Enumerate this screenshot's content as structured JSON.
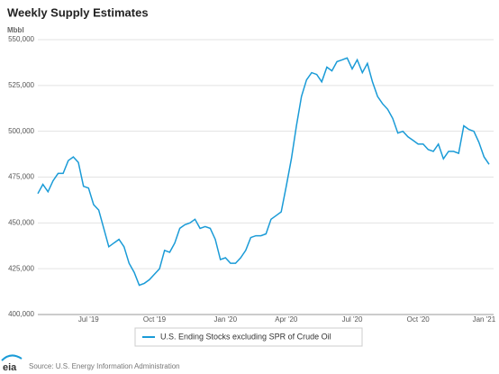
{
  "chart_data": {
    "type": "line",
    "title": "Weekly Supply Estimates",
    "y_unit": "Mbbl",
    "source": "Source: U.S. Energy Information Administration",
    "logo": "eia",
    "categories": [
      null,
      null,
      null,
      null,
      null,
      null,
      null,
      null,
      null,
      null,
      "Jul '19",
      null,
      null,
      null,
      null,
      null,
      null,
      null,
      null,
      null,
      null,
      null,
      null,
      "Oct '19",
      null,
      null,
      null,
      null,
      null,
      null,
      null,
      null,
      null,
      null,
      null,
      null,
      null,
      "Jan '20",
      null,
      null,
      null,
      null,
      null,
      null,
      null,
      null,
      null,
      null,
      null,
      "Apr '20",
      null,
      null,
      null,
      null,
      null,
      null,
      null,
      null,
      null,
      null,
      null,
      null,
      "Jul '20",
      null,
      null,
      null,
      null,
      null,
      null,
      null,
      null,
      null,
      null,
      null,
      null,
      "Oct '20",
      null,
      null,
      null,
      null,
      null,
      null,
      null,
      null,
      null,
      null,
      null,
      null,
      "Jan '21",
      null
    ],
    "series": [
      {
        "name": "U.S. Ending Stocks excluding SPR of Crude Oil",
        "color": "#1a9bd7",
        "values": [
          466000,
          471000,
          467000,
          473000,
          477000,
          477000,
          484000,
          486000,
          483000,
          470000,
          469000,
          460000,
          457000,
          447000,
          437000,
          439000,
          441000,
          437000,
          428000,
          423000,
          416000,
          417000,
          419000,
          422000,
          425000,
          435000,
          434000,
          439000,
          447000,
          449000,
          450000,
          452000,
          447000,
          448000,
          447000,
          441000,
          430000,
          431000,
          428000,
          428000,
          431000,
          435000,
          442000,
          443000,
          443000,
          444000,
          452000,
          454000,
          456000,
          470000,
          485000,
          503000,
          519000,
          528000,
          532000,
          531000,
          527000,
          535000,
          533000,
          538000,
          539000,
          540000,
          534000,
          539000,
          532000,
          537000,
          527000,
          519000,
          515000,
          512000,
          507000,
          499000,
          500000,
          497000,
          495000,
          493000,
          493000,
          490000,
          489000,
          493000,
          485000,
          489000,
          489000,
          488000,
          503000,
          501000,
          500000,
          494000,
          486000,
          482000
        ]
      }
    ],
    "ylim": [
      400000,
      550000
    ],
    "yticks": [
      {
        "value": 400000,
        "label": "400,000"
      },
      {
        "value": 425000,
        "label": "425,000"
      },
      {
        "value": 450000,
        "label": "450,000"
      },
      {
        "value": 475000,
        "label": "475,000"
      },
      {
        "value": 500000,
        "label": "500,000"
      },
      {
        "value": 525000,
        "label": "525,000"
      },
      {
        "value": 550000,
        "label": "550,000"
      }
    ],
    "grid": true
  }
}
